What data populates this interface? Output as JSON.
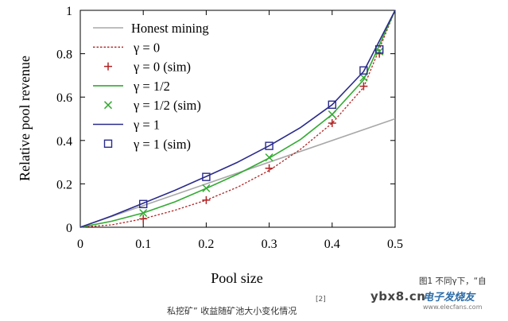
{
  "chart_data": {
    "type": "line",
    "title": "",
    "xlabel": "Pool size",
    "ylabel": "Relative pool revenue",
    "xlim": [
      0,
      0.5
    ],
    "ylim": [
      0,
      1
    ],
    "xticks": [
      0,
      0.1,
      0.2,
      0.3,
      0.4,
      0.5
    ],
    "yticks": [
      0,
      0.2,
      0.4,
      0.6,
      0.8,
      1
    ],
    "xtick_labels": [
      "0",
      "0.1",
      "0.2",
      "0.3",
      "0.4",
      "0.5"
    ],
    "ytick_labels": [
      "0",
      "0.2",
      "0.4",
      "0.6",
      "0.8",
      "1"
    ],
    "legend_position": "top-left",
    "series": [
      {
        "name": "Honest mining",
        "kind": "line",
        "style": "solid",
        "color": "#a8a8a8",
        "x": [
          0,
          0.5
        ],
        "y": [
          0,
          0.5
        ]
      },
      {
        "name": "γ = 0",
        "kind": "line",
        "style": "dotted",
        "color": "#b22222",
        "x": [
          0,
          0.05,
          0.1,
          0.15,
          0.2,
          0.25,
          0.3,
          0.35,
          0.4,
          0.45,
          0.5
        ],
        "y": [
          0,
          0.011,
          0.039,
          0.078,
          0.125,
          0.185,
          0.262,
          0.36,
          0.48,
          0.645,
          1
        ]
      },
      {
        "name": "γ = 0 (sim)",
        "kind": "marker",
        "marker": "plus",
        "color": "#b22222",
        "x": [
          0.1,
          0.2,
          0.3,
          0.4,
          0.45,
          0.475
        ],
        "y": [
          0.039,
          0.125,
          0.272,
          0.48,
          0.65,
          0.8
        ]
      },
      {
        "name": "γ = 1/2",
        "kind": "line",
        "style": "solid",
        "color": "#33aa33",
        "x": [
          0,
          0.05,
          0.1,
          0.15,
          0.2,
          0.25,
          0.3,
          0.35,
          0.4,
          0.45,
          0.5
        ],
        "y": [
          0,
          0.028,
          0.066,
          0.117,
          0.179,
          0.245,
          0.319,
          0.405,
          0.52,
          0.68,
          1
        ]
      },
      {
        "name": "γ = 1/2 (sim)",
        "kind": "marker",
        "marker": "x",
        "color": "#33aa33",
        "x": [
          0.1,
          0.2,
          0.3,
          0.4,
          0.45,
          0.475
        ],
        "y": [
          0.066,
          0.18,
          0.322,
          0.52,
          0.69,
          0.81
        ]
      },
      {
        "name": "γ = 1",
        "kind": "line",
        "style": "solid",
        "color": "#2a2a8c",
        "x": [
          0,
          0.05,
          0.1,
          0.15,
          0.2,
          0.25,
          0.3,
          0.35,
          0.4,
          0.45,
          0.5
        ],
        "y": [
          0,
          0.052,
          0.111,
          0.17,
          0.234,
          0.3,
          0.376,
          0.46,
          0.565,
          0.718,
          1
        ]
      },
      {
        "name": "γ = 1 (sim)",
        "kind": "marker",
        "marker": "square",
        "color": "#2a2a8c",
        "x": [
          0.1,
          0.2,
          0.3,
          0.4,
          0.45,
          0.475
        ],
        "y": [
          0.107,
          0.232,
          0.375,
          0.565,
          0.723,
          0.82
        ]
      }
    ]
  },
  "caption": "私挖矿” 收益随矿池大小变化情况",
  "caption_ref": "[2]",
  "side_note": "图1 不同γ下，“自",
  "watermark": {
    "main": "ybx8.cn",
    "cn": "电子发烧友",
    "url": "www.elecfans.com"
  }
}
